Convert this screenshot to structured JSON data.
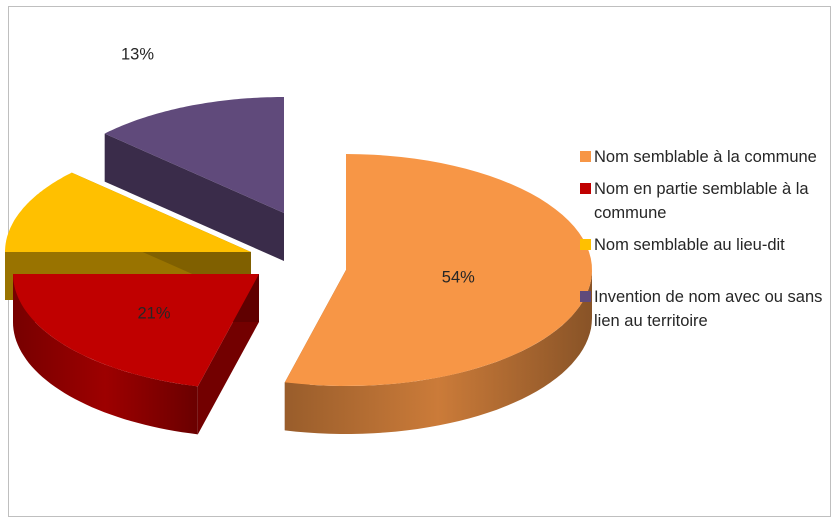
{
  "chart_data": {
    "type": "pie",
    "variant": "3d-exploded",
    "title": "",
    "slices": [
      {
        "label": "Nom semblable à la commune",
        "value": 54,
        "display": "54%",
        "color": "#F79646"
      },
      {
        "label": "Nom en partie semblable à la commune",
        "value": 21,
        "display": "21%",
        "color": "#C00000"
      },
      {
        "label": "Nom semblable au lieu-dit",
        "value": 12,
        "display": "12%",
        "color": "#FFC000"
      },
      {
        "label": "Invention de nom avec ou sans lien au territoire",
        "value": 13,
        "display": "13%",
        "color": "#604A7B"
      }
    ],
    "legend_position": "right"
  }
}
